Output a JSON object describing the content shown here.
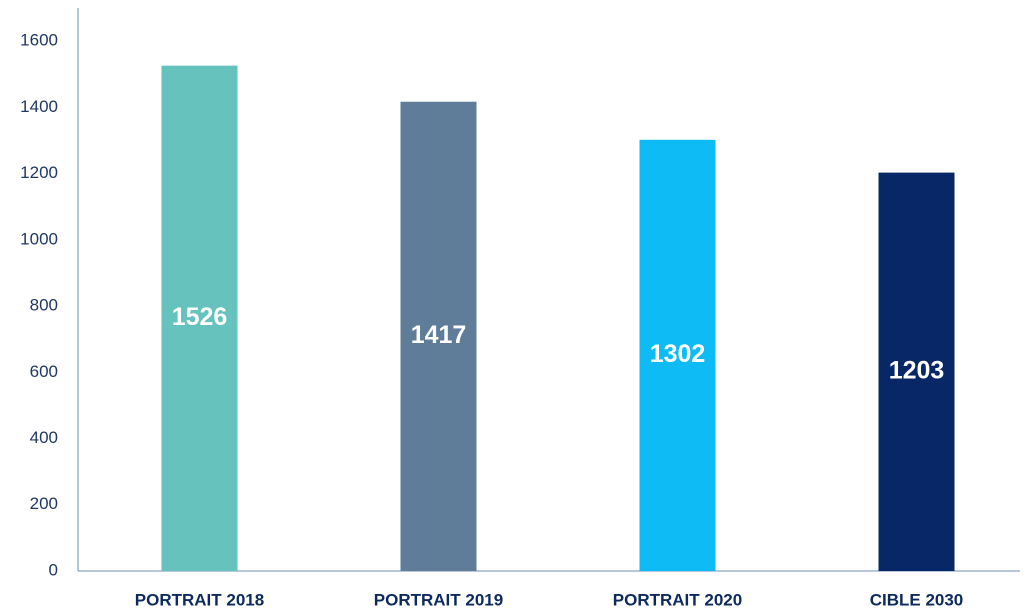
{
  "chart_data": {
    "type": "bar",
    "categories": [
      "PORTRAIT 2018",
      "PORTRAIT 2019",
      "PORTRAIT 2020",
      "CIBLE 2030"
    ],
    "values": [
      1526,
      1417,
      1302,
      1203
    ],
    "colors": [
      "#66c2bd",
      "#5f7d98",
      "#0fbbf5",
      "#082766"
    ],
    "ylim": [
      0,
      1700
    ],
    "yticks": [
      0,
      200,
      400,
      600,
      800,
      1000,
      1200,
      1400,
      1600
    ],
    "grid": false,
    "data_labels": true
  }
}
